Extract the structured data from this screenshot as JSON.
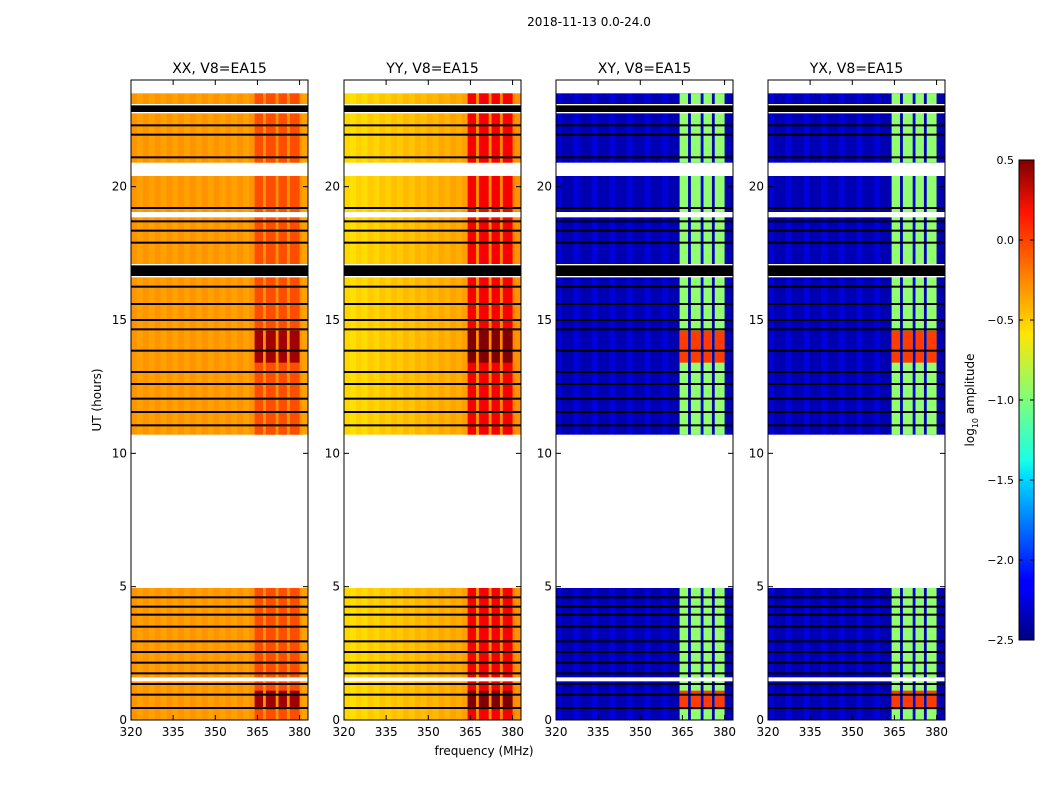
{
  "chart_data": {
    "type": "heatmap",
    "title": "2018-11-13 0.0-24.0",
    "xlabel": "frequency (MHz)",
    "ylabel": "UT (hours)",
    "xlim": [
      320,
      383
    ],
    "ylim": [
      0,
      24
    ],
    "xticks": [
      320,
      335,
      350,
      365,
      380
    ],
    "yticks": [
      0,
      5,
      10,
      15,
      20
    ],
    "colorbar": {
      "label_main": "log",
      "label_sub": "10",
      "label_tail": " amplitude",
      "range": [
        -2.5,
        0.5
      ],
      "ticks": [
        0.5,
        0.0,
        -0.5,
        -1.0,
        -1.5,
        -2.0,
        -2.5
      ],
      "tick_labels": [
        "0.5",
        "0.0",
        "−0.5",
        "−1.0",
        "−1.5",
        "−2.0",
        "−2.5"
      ],
      "colormap": "jet"
    },
    "data_bands": [
      [
        0,
        4.95
      ],
      [
        10.7,
        20.4
      ],
      [
        20.9,
        23.5
      ]
    ],
    "flag_lines": [
      0.45,
      0.95,
      1.35,
      1.75,
      2.15,
      2.55,
      2.95,
      3.5,
      3.95,
      4.25,
      4.6,
      11.05,
      11.55,
      12.05,
      12.6,
      13.05,
      13.85,
      14.65,
      15.0,
      15.6,
      16.25,
      17.9,
      18.35,
      18.7,
      19.2,
      21.1,
      21.95,
      22.3,
      22.95
    ],
    "flag_gaps": [
      [
        1.45,
        1.6
      ],
      [
        16.6,
        17.1
      ],
      [
        18.85,
        19.05
      ],
      [
        22.75,
        23.1
      ]
    ],
    "freq_columns": [
      {
        "start": 364,
        "end": 367
      },
      {
        "start": 368,
        "end": 371.5
      },
      {
        "start": 372.5,
        "end": 375.5
      },
      {
        "start": 376.5,
        "end": 380
      }
    ],
    "bright_rows": [
      [
        0.4,
        1.1
      ],
      [
        13.4,
        14.6
      ]
    ],
    "panels": [
      {
        "id": "XX",
        "title": "XX, V8=EA15",
        "kind": "parallel",
        "base_level": -0.35,
        "slope_level": 0.0,
        "column_level": -0.1,
        "bright_level": 0.4
      },
      {
        "id": "YY",
        "title": "YY, V8=EA15",
        "kind": "parallel",
        "base_level": -0.3,
        "slope_level": -0.25,
        "column_level": 0.15,
        "bright_level": 0.5
      },
      {
        "id": "XY",
        "title": "XY, V8=EA15",
        "kind": "cross",
        "base_level": -2.35,
        "slope_level": 0.0,
        "column_level": -0.95,
        "bright_level": -0.05
      },
      {
        "id": "YX",
        "title": "YX, V8=EA15",
        "kind": "cross",
        "base_level": -2.35,
        "slope_level": 0.0,
        "column_level": -0.95,
        "bright_level": -0.05
      }
    ]
  }
}
